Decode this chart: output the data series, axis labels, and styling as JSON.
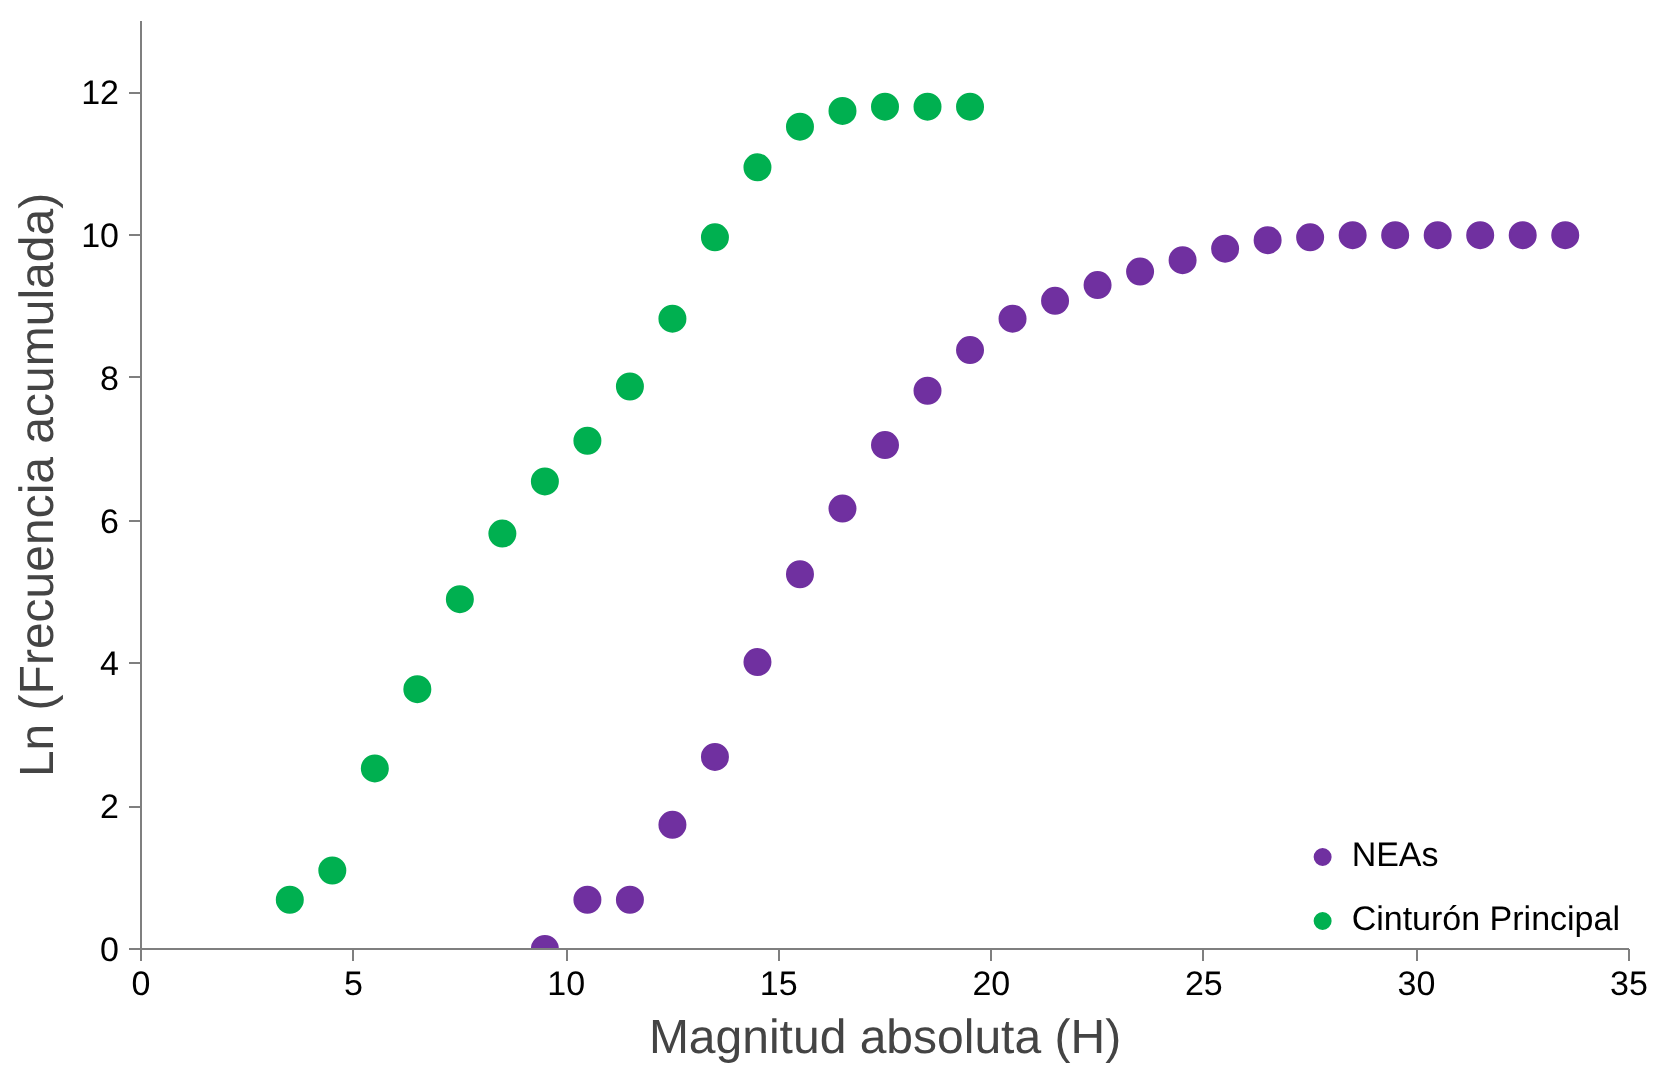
{
  "chart_data": {
    "type": "scatter",
    "xlabel": "Magnitud absoluta (H)",
    "ylabel": "Ln (Frecuencia acumulada)",
    "xlim": [
      0,
      35
    ],
    "xticks": [
      0,
      5,
      10,
      15,
      20,
      25,
      30,
      35
    ],
    "ylim": [
      0,
      13
    ],
    "yticks": [
      0,
      2,
      4,
      6,
      8,
      10,
      12
    ],
    "grid": false,
    "legend": "bottom right",
    "marker": "circle",
    "series": [
      {
        "name": "NEAs",
        "color": "#7030a0",
        "x": [
          9.5,
          10.5,
          11.5,
          12.5,
          13.5,
          14.5,
          15.5,
          16.5,
          17.5,
          18.5,
          19.5,
          20.5,
          21.5,
          22.5,
          23.5,
          24.5,
          25.5,
          26.5,
          27.5,
          28.5,
          29.5,
          30.5,
          31.5,
          32.5,
          33.5
        ],
        "values": [
          0,
          0.69,
          0.69,
          1.74,
          2.69,
          4.02,
          5.25,
          6.17,
          7.06,
          7.82,
          8.39,
          8.83,
          9.08,
          9.3,
          9.49,
          9.65,
          9.81,
          9.93,
          9.97,
          10.0,
          10.0,
          10.0,
          10.0,
          10.0,
          10.0
        ]
      },
      {
        "name": "Cinturón Principal",
        "color": "#00b050",
        "x": [
          3.5,
          4.5,
          5.5,
          6.5,
          7.5,
          8.5,
          9.5,
          10.5,
          11.5,
          12.5,
          13.5,
          14.5,
          15.5,
          16.5,
          17.5,
          18.5,
          19.5
        ],
        "values": [
          0.69,
          1.1,
          2.53,
          3.64,
          4.9,
          5.82,
          6.55,
          7.12,
          7.88,
          8.83,
          9.97,
          10.95,
          11.52,
          11.74,
          11.8,
          11.8,
          11.8
        ]
      }
    ]
  }
}
